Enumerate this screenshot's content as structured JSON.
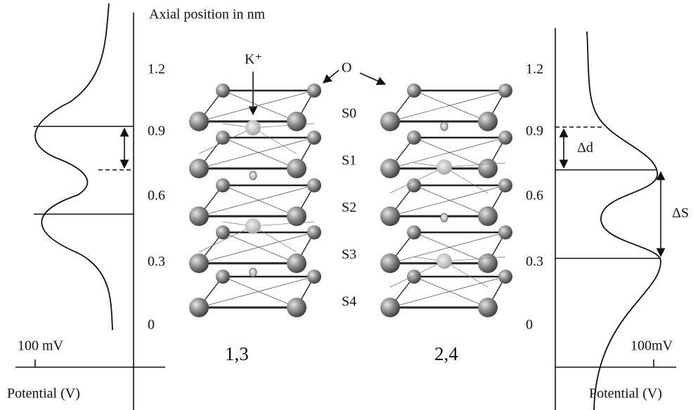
{
  "header": {
    "title": "Axial position in nm"
  },
  "left_axis": {
    "ticks": [
      "1.2",
      "0.9",
      "0.6",
      "0.3",
      "0"
    ],
    "scale_label": "100 mV",
    "axis_label": "Potential (V)"
  },
  "right_axis": {
    "ticks": [
      "1.2",
      "0.9",
      "0.6",
      "0.3",
      "0"
    ],
    "scale_label": "100mV",
    "axis_label": "Potential (V)",
    "delta_d": "Δd",
    "delta_s": "ΔS"
  },
  "labels": {
    "ion": "K⁺",
    "oxygen": "O",
    "sites": [
      "S0",
      "S1",
      "S2",
      "S3",
      "S4"
    ]
  },
  "configurations": [
    "1,3",
    "2,4"
  ]
}
